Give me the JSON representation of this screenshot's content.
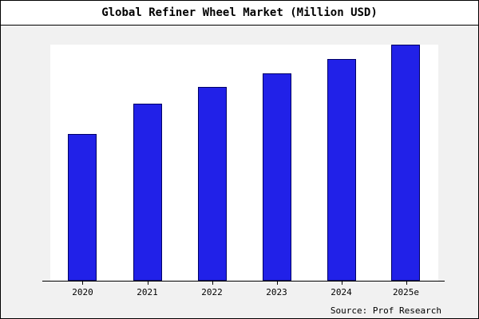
{
  "title": "Global Refiner Wheel Market (Million USD)",
  "source": "Source: Prof Research",
  "colors": {
    "bar_fill": "#2121e8",
    "bar_edge": "#000066",
    "background": "#f1f1f1",
    "plot_background": "#ffffff",
    "axis": "#000000"
  },
  "chart_data": {
    "type": "bar",
    "title": "Global Refiner Wheel Market (Million USD)",
    "categories": [
      "2020",
      "2021",
      "2022",
      "2023",
      "2024",
      "2025e"
    ],
    "values": [
      62,
      75,
      82,
      88,
      94,
      100
    ],
    "xlabel": "",
    "ylabel": "",
    "ylim": [
      0,
      100
    ],
    "grid": false,
    "legend": false,
    "y_axis_labels_shown": false,
    "annotation": "Source: Prof Research"
  }
}
